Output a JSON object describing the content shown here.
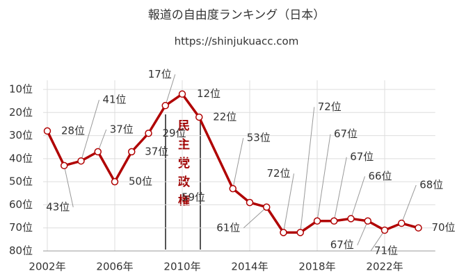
{
  "chart_data": {
    "type": "line",
    "title": "報道の自由度ランキング（日本）",
    "subtitle": "https://shinjukuacc.com",
    "annotation": "民主党政権",
    "x": [
      2002,
      2003,
      2004,
      2005,
      2006,
      2007,
      2008,
      2009,
      2010,
      2011,
      2013,
      2014,
      2015,
      2016,
      2017,
      2018,
      2019,
      2020,
      2021,
      2022,
      2023,
      2024
    ],
    "series": [
      {
        "color": "#b00000",
        "values": [
          28,
          43,
          41,
          37,
          50,
          37,
          29,
          17,
          12,
          22,
          53,
          59,
          61,
          72,
          72,
          67,
          67,
          66,
          67,
          71,
          68,
          70
        ],
        "value_labels": [
          "28位",
          "43位",
          "41位",
          "37位",
          "50位",
          "37位",
          "29位",
          "17位",
          "12位",
          "22位",
          "53位",
          "59位",
          "61位",
          "72位",
          "72位",
          "67位",
          "67位",
          "66位",
          "67位",
          "71位",
          "68位",
          "70位"
        ]
      }
    ],
    "xlim": [
      2002,
      2025
    ],
    "xticks": [
      {
        "value": 2002,
        "label": "2002年"
      },
      {
        "value": 2006,
        "label": "2006年"
      },
      {
        "value": 2010,
        "label": "2010年"
      },
      {
        "value": 2014,
        "label": "2014年"
      },
      {
        "value": 2018,
        "label": "2018年"
      },
      {
        "value": 2022,
        "label": "2022年"
      }
    ],
    "ylim": [
      80,
      6
    ],
    "yticks": [
      {
        "value": 10,
        "label": "10位"
      },
      {
        "value": 20,
        "label": "20位"
      },
      {
        "value": 30,
        "label": "30位"
      },
      {
        "value": 40,
        "label": "40位"
      },
      {
        "value": 50,
        "label": "50位"
      },
      {
        "value": 60,
        "label": "60位"
      },
      {
        "value": 70,
        "label": "70位"
      },
      {
        "value": 80,
        "label": "80位"
      }
    ],
    "grid": true
  }
}
